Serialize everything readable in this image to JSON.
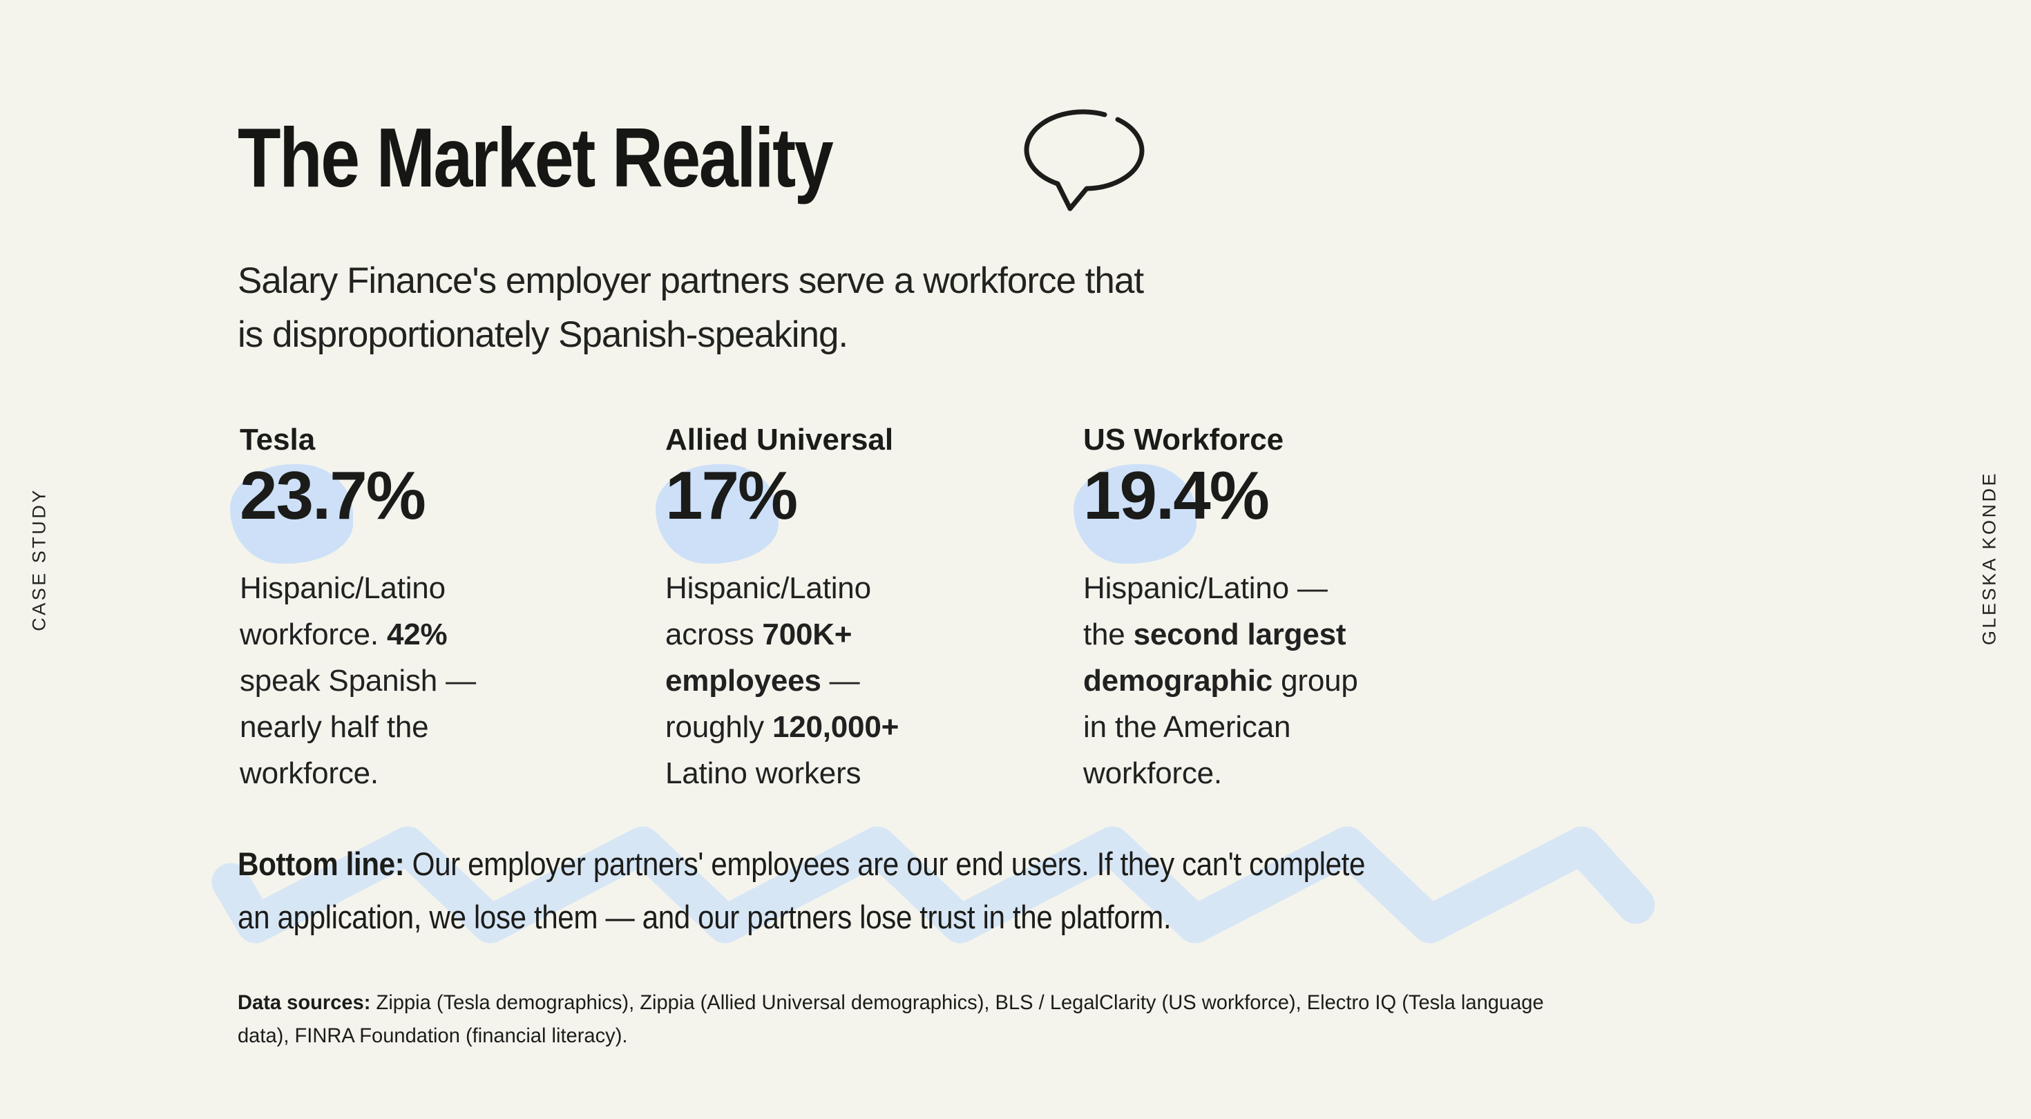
{
  "slide": {
    "background_color": "#f4f4ed",
    "ink_color": "#1d1d1b",
    "highlight_blob_color": "#cde0f8",
    "squiggle_color": "#d7e6f5"
  },
  "side_labels": {
    "left": "CASE STUDY",
    "right": "GLESKA KONDE"
  },
  "header": {
    "title": "The Market Reality",
    "icon": "speech-bubble"
  },
  "intro": {
    "lines": [
      [
        {
          "t": "Salary Finance's employer partners serve a workforce that"
        }
      ],
      [
        {
          "t": "is disproportionately Spanish-speaking."
        }
      ]
    ]
  },
  "stats": [
    {
      "label": "Tesla",
      "value": "23.7%",
      "description_lines": [
        [
          {
            "t": "Hispanic/Latino"
          }
        ],
        [
          {
            "t": "workforce. "
          },
          {
            "t": "42%",
            "b": true
          }
        ],
        [
          {
            "t": "speak Spanish —"
          }
        ],
        [
          {
            "t": "nearly half the"
          }
        ],
        [
          {
            "t": "workforce."
          }
        ]
      ]
    },
    {
      "label": "Allied Universal",
      "value": "17%",
      "description_lines": [
        [
          {
            "t": "Hispanic/Latino"
          }
        ],
        [
          {
            "t": "across "
          },
          {
            "t": "700K+",
            "b": true
          }
        ],
        [
          {
            "t": "employees",
            "b": true
          },
          {
            "t": " —"
          }
        ],
        [
          {
            "t": "roughly "
          },
          {
            "t": "120,000+",
            "b": true
          }
        ],
        [
          {
            "t": "Latino workers"
          }
        ]
      ]
    },
    {
      "label": "US Workforce",
      "value": "19.4%",
      "description_lines": [
        [
          {
            "t": "Hispanic/Latino —"
          }
        ],
        [
          {
            "t": "the "
          },
          {
            "t": "second largest",
            "b": true
          }
        ],
        [
          {
            "t": "demographic",
            "b": true
          },
          {
            "t": " group"
          }
        ],
        [
          {
            "t": "in the American"
          }
        ],
        [
          {
            "t": "workforce."
          }
        ]
      ]
    }
  ],
  "bottom_line": {
    "lines": [
      [
        {
          "t": "Bottom line:",
          "b": true
        },
        {
          "t": " Our employer partners' employees are our end users. If they can't complete"
        }
      ],
      [
        {
          "t": "an application, we lose them — and our partners lose trust in the platform."
        }
      ]
    ]
  },
  "data_sources": {
    "lines": [
      [
        {
          "t": "Data sources:",
          "b": true
        },
        {
          "t": " Zippia (Tesla demographics), Zippia (Allied Universal demographics), BLS / LegalClarity (US workforce), Electro IQ (Tesla language"
        }
      ],
      [
        {
          "t": "data), FINRA Foundation (financial literacy)."
        }
      ]
    ]
  }
}
